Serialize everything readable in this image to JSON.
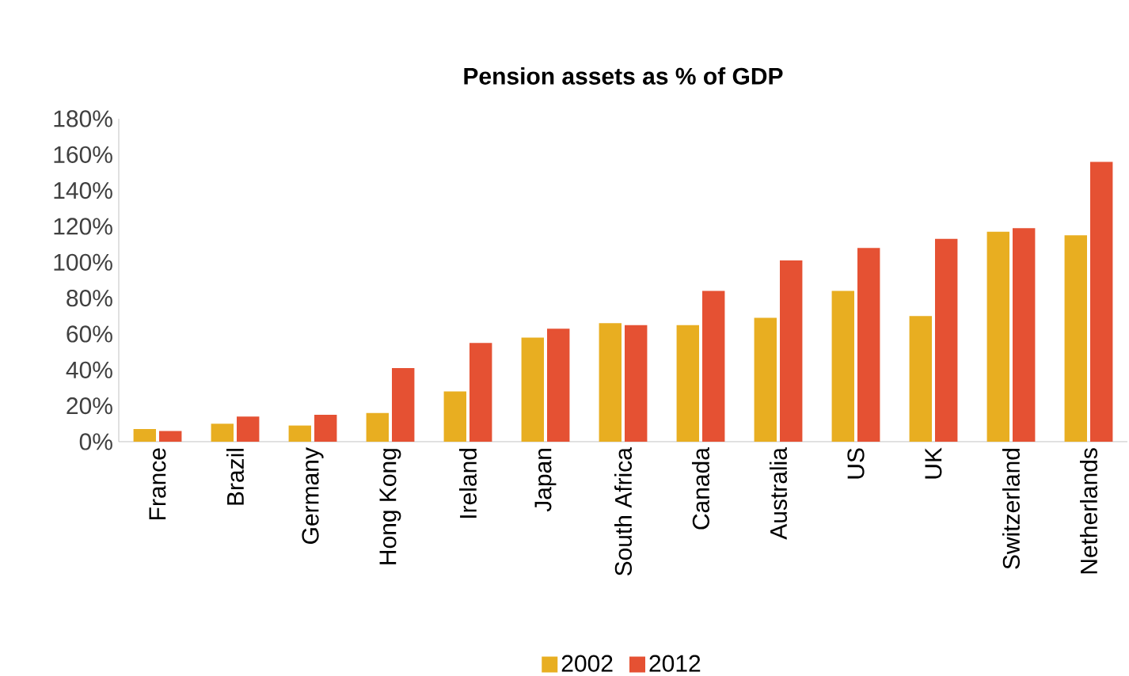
{
  "chart_data": {
    "type": "bar",
    "title": "Pension assets as % of GDP",
    "categories": [
      "France",
      "Brazil",
      "Germany",
      "Hong Kong",
      "Ireland",
      "Japan",
      "South Africa",
      "Canada",
      "Australia",
      "US",
      "UK",
      "Switzerland",
      "Netherlands"
    ],
    "series": [
      {
        "name": "2002",
        "color": "#e8ae21",
        "values": [
          7,
          10,
          9,
          16,
          28,
          58,
          66,
          65,
          69,
          84,
          70,
          117,
          115
        ]
      },
      {
        "name": "2012",
        "color": "#e55133",
        "values": [
          6,
          14,
          15,
          41,
          55,
          63,
          65,
          84,
          101,
          108,
          113,
          119,
          156
        ]
      }
    ],
    "ylim": [
      0,
      180
    ],
    "yticks": [
      {
        "value": 0,
        "label": "0%"
      },
      {
        "value": 20,
        "label": "20%"
      },
      {
        "value": 40,
        "label": "40%"
      },
      {
        "value": 60,
        "label": "60%"
      },
      {
        "value": 80,
        "label": "80%"
      },
      {
        "value": 100,
        "label": "100%"
      },
      {
        "value": 120,
        "label": "120%"
      },
      {
        "value": 140,
        "label": "140%"
      },
      {
        "value": 160,
        "label": "160%"
      },
      {
        "value": 180,
        "label": "180%"
      }
    ],
    "grid": false,
    "legend": "bottom"
  }
}
